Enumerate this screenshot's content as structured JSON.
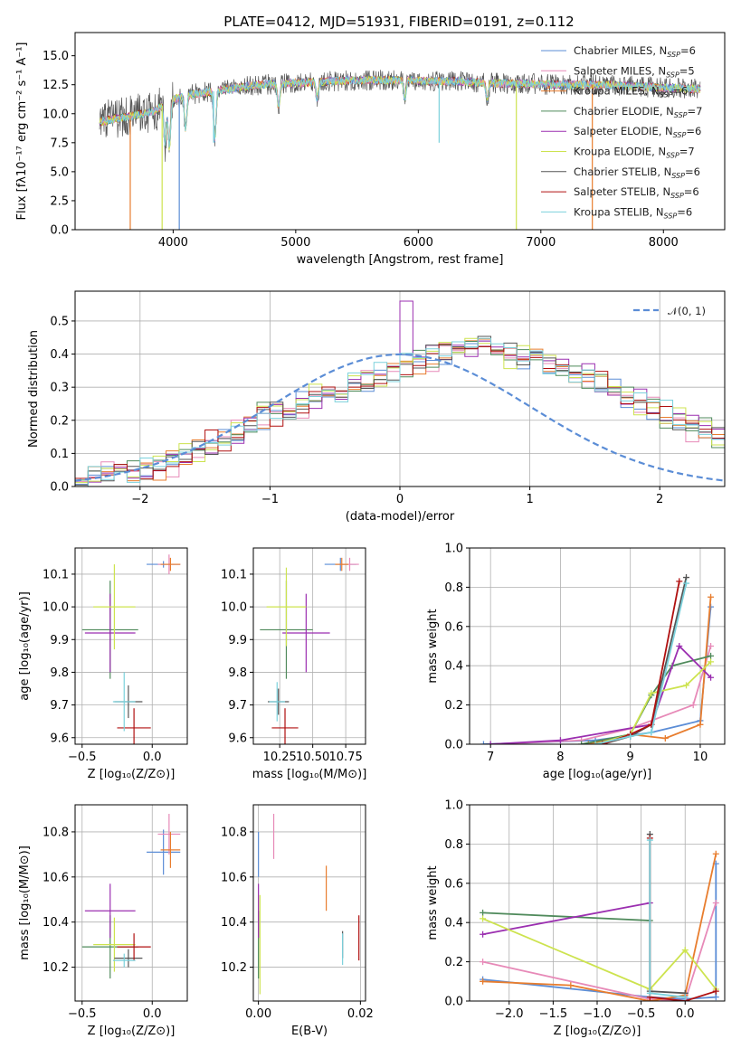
{
  "figure": {
    "title": "PLATE=0412, MJD=51931, FIBERID=0191, z=0.112"
  },
  "chart_data": [
    {
      "id": "spectrum",
      "type": "line",
      "xlabel": "wavelength [Angstrom, rest frame]",
      "ylabel": "Flux [fλ10⁻¹⁷ erg cm⁻² s⁻¹ A⁻¹]",
      "xlim": [
        3200,
        8500
      ],
      "ylim": [
        0,
        17
      ],
      "xticks": [
        4000,
        5000,
        6000,
        7000,
        8000
      ],
      "yticks": [
        0.0,
        2.5,
        5.0,
        7.5,
        10.0,
        12.5,
        15.0
      ],
      "x_tick_labels": [
        "4000",
        "5000",
        "6000",
        "7000",
        "8000"
      ],
      "y_tick_labels": [
        "0.0",
        "2.5",
        "5.0",
        "7.5",
        "10.0",
        "12.5",
        "15.0"
      ],
      "grid": false,
      "legend": "top-right",
      "continuum": {
        "x": [
          3400,
          3550,
          3700,
          3850,
          3950,
          4100,
          4300,
          4500,
          4700,
          4900,
          5100,
          5300,
          5500,
          5700,
          5900,
          6100,
          6300,
          6500,
          6700,
          6900,
          7100,
          7300,
          7500,
          7700,
          7900,
          8100,
          8300
        ],
        "y": [
          9.3,
          9.6,
          9.9,
          10.2,
          11.0,
          11.6,
          11.9,
          12.2,
          12.5,
          12.6,
          12.7,
          12.8,
          12.9,
          12.9,
          12.9,
          12.8,
          12.8,
          12.7,
          12.6,
          12.6,
          12.5,
          12.5,
          12.5,
          12.4,
          12.3,
          12.2,
          12.1
        ]
      },
      "absorption_lines": [
        {
          "x": 3934,
          "depth": 3.5
        },
        {
          "x": 3969,
          "depth": 4.0
        },
        {
          "x": 4102,
          "depth": 3.0
        },
        {
          "x": 4340,
          "depth": 4.2
        },
        {
          "x": 4861,
          "depth": 2.0
        },
        {
          "x": 5175,
          "depth": 1.5
        },
        {
          "x": 5890,
          "depth": 1.6
        },
        {
          "x": 6563,
          "depth": 1.4
        }
      ],
      "spikes_down": [
        {
          "x": 3650,
          "color": "#e87d2e",
          "to": 0.0
        },
        {
          "x": 3910,
          "color": "#cde34f",
          "to": 0.0
        },
        {
          "x": 4050,
          "color": "#5b8dd6",
          "to": 0.0
        },
        {
          "x": 6800,
          "color": "#cde34f",
          "to": 0.0
        },
        {
          "x": 7420,
          "color": "#e87d2e",
          "to": 0.0
        },
        {
          "x": 4330,
          "color": "#7bd1dc",
          "to": 7.5
        },
        {
          "x": 6170,
          "color": "#7bd1dc",
          "to": 7.5
        }
      ],
      "series": [
        {
          "name": "Chabrier MILES, N",
          "sub": "SSP",
          "suffix": "=6",
          "color": "#5b8dd6"
        },
        {
          "name": "Salpeter MILES, N",
          "sub": "SSP",
          "suffix": "=5",
          "color": "#e78ab8"
        },
        {
          "name": "Kroupa MILES, N",
          "sub": "SSP",
          "suffix": "=6",
          "color": "#e87d2e"
        },
        {
          "name": "Chabrier ELODIE, N",
          "sub": "SSP",
          "suffix": "=7",
          "color": "#4f8a5b"
        },
        {
          "name": "Salpeter ELODIE, N",
          "sub": "SSP",
          "suffix": "=6",
          "color": "#9b2fb0"
        },
        {
          "name": "Kroupa ELODIE, N",
          "sub": "SSP",
          "suffix": "=7",
          "color": "#cde34f"
        },
        {
          "name": "Chabrier STELIB, N",
          "sub": "SSP",
          "suffix": "=6",
          "color": "#555555"
        },
        {
          "name": "Salpeter STELIB, N",
          "sub": "SSP",
          "suffix": "=6",
          "color": "#b01010"
        },
        {
          "name": "Kroupa STELIB, N",
          "sub": "SSP",
          "suffix": "=6",
          "color": "#7bd1dc"
        }
      ]
    },
    {
      "id": "residuals",
      "type": "line",
      "xlabel": "(data-model)/error",
      "ylabel": "Normed distribution",
      "xlim": [
        -2.5,
        2.5
      ],
      "ylim": [
        0,
        0.59
      ],
      "xticks": [
        -2,
        -1,
        0,
        1,
        2
      ],
      "yticks": [
        0.0,
        0.1,
        0.2,
        0.3,
        0.4,
        0.5
      ],
      "x_tick_labels": [
        "−2",
        "−1",
        "0",
        "1",
        "2"
      ],
      "y_tick_labels": [
        "0.0",
        "0.1",
        "0.2",
        "0.3",
        "0.4",
        "0.5"
      ],
      "grid": true,
      "legend": "top-right",
      "legend_label": "𝒩(0, 1)",
      "hist_bin_width": 0.1,
      "hist_values": [
        0.02,
        0.03,
        0.04,
        0.05,
        0.05,
        0.05,
        0.06,
        0.07,
        0.09,
        0.11,
        0.13,
        0.14,
        0.16,
        0.19,
        0.21,
        0.22,
        0.24,
        0.25,
        0.27,
        0.28,
        0.29,
        0.31,
        0.32,
        0.34,
        0.35,
        0.37,
        0.38,
        0.39,
        0.4,
        0.41,
        0.42,
        0.42,
        0.41,
        0.4,
        0.39,
        0.38,
        0.37,
        0.35,
        0.34,
        0.33,
        0.31,
        0.29,
        0.27,
        0.25,
        0.24,
        0.22,
        0.2,
        0.18,
        0.17,
        0.15,
        0.14,
        0.12,
        0.11,
        0.1,
        0.09,
        0.08,
        0.07,
        0.06,
        0.05,
        0.05
      ],
      "hist_offsets": [
        0.0,
        0.02,
        -0.02,
        0.03,
        -0.03,
        0.01,
        -0.01,
        0.04,
        -0.04,
        0.02
      ],
      "series_colors": [
        "#5b8dd6",
        "#e78ab8",
        "#e87d2e",
        "#4f8a5b",
        "#9b2fb0",
        "#cde34f",
        "#555555",
        "#b01010",
        "#7bd1dc"
      ],
      "gauss_color": "#5b8dd6"
    },
    {
      "id": "age_vs_Z",
      "type": "scatter",
      "xlabel": "Z [log₁₀(Z/Z⊙)]",
      "ylabel": "age  [log₁₀(age/yr)]",
      "xlim": [
        -0.55,
        0.25
      ],
      "ylim": [
        9.58,
        10.18
      ],
      "xticks": [
        -0.5,
        0.0
      ],
      "yticks": [
        9.6,
        9.7,
        9.8,
        9.9,
        10.0,
        10.1
      ],
      "x_tick_labels": [
        "−0.5",
        "0.0"
      ],
      "y_tick_labels": [
        "9.6",
        "9.7",
        "9.8",
        "9.9",
        "10.0",
        "10.1"
      ],
      "grid": true,
      "points": [
        {
          "x": 0.08,
          "y": 10.13,
          "xe": 0.12,
          "ye": 0.01,
          "c": "#5b8dd6"
        },
        {
          "x": 0.12,
          "y": 10.13,
          "xe": 0.08,
          "ye": 0.03,
          "c": "#e78ab8"
        },
        {
          "x": 0.13,
          "y": 10.13,
          "xe": 0.07,
          "ye": 0.02,
          "c": "#e87d2e"
        },
        {
          "x": -0.3,
          "y": 9.93,
          "xe": 0.2,
          "ye": 0.15,
          "c": "#4f8a5b"
        },
        {
          "x": -0.3,
          "y": 9.92,
          "xe": 0.18,
          "ye": 0.12,
          "c": "#9b2fb0"
        },
        {
          "x": -0.27,
          "y": 10.0,
          "xe": 0.15,
          "ye": 0.13,
          "c": "#cde34f"
        },
        {
          "x": -0.17,
          "y": 9.71,
          "xe": 0.1,
          "ye": 0.05,
          "c": "#555555"
        },
        {
          "x": -0.13,
          "y": 9.63,
          "xe": 0.12,
          "ye": 0.06,
          "c": "#b01010"
        },
        {
          "x": -0.2,
          "y": 9.71,
          "xe": 0.08,
          "ye": 0.09,
          "c": "#7bd1dc"
        }
      ]
    },
    {
      "id": "age_vs_mass",
      "type": "scatter",
      "xlabel": "mass [log₁₀(M/M⊙)]",
      "ylabel": "",
      "xlim": [
        10.05,
        10.9
      ],
      "ylim": [
        9.58,
        10.18
      ],
      "xticks": [
        10.25,
        10.5,
        10.75
      ],
      "yticks": [
        9.6,
        9.7,
        9.8,
        9.9,
        10.0,
        10.1
      ],
      "x_tick_labels": [
        "10.25",
        "10.50",
        "10.75"
      ],
      "y_tick_labels": [
        "9.6",
        "9.7",
        "9.8",
        "9.9",
        "10.0",
        "10.1"
      ],
      "grid": true,
      "points": [
        {
          "x": 10.71,
          "y": 10.13,
          "xe": 0.12,
          "ye": 0.02,
          "c": "#5b8dd6"
        },
        {
          "x": 10.78,
          "y": 10.13,
          "xe": 0.07,
          "ye": 0.02,
          "c": "#e78ab8"
        },
        {
          "x": 10.72,
          "y": 10.13,
          "xe": 0.05,
          "ye": 0.02,
          "c": "#e87d2e"
        },
        {
          "x": 10.3,
          "y": 9.93,
          "xe": 0.2,
          "ye": 0.15,
          "c": "#4f8a5b"
        },
        {
          "x": 10.45,
          "y": 9.92,
          "xe": 0.18,
          "ye": 0.12,
          "c": "#9b2fb0"
        },
        {
          "x": 10.3,
          "y": 10.0,
          "xe": 0.15,
          "ye": 0.12,
          "c": "#cde34f"
        },
        {
          "x": 10.24,
          "y": 9.71,
          "xe": 0.08,
          "ye": 0.04,
          "c": "#555555"
        },
        {
          "x": 10.29,
          "y": 9.63,
          "xe": 0.1,
          "ye": 0.06,
          "c": "#b01010"
        },
        {
          "x": 10.23,
          "y": 9.71,
          "xe": 0.06,
          "ye": 0.06,
          "c": "#7bd1dc"
        }
      ]
    },
    {
      "id": "massweight_vs_age",
      "type": "line",
      "xlabel": "age  [log₁₀(age/yr)]",
      "ylabel": "mass weight",
      "xlim": [
        6.7,
        10.35
      ],
      "ylim": [
        0,
        1.0
      ],
      "xticks": [
        7,
        8,
        9,
        10
      ],
      "yticks": [
        0.0,
        0.2,
        0.4,
        0.6,
        0.8,
        1.0
      ],
      "x_tick_labels": [
        "7",
        "8",
        "9",
        "10"
      ],
      "y_tick_labels": [
        "0.0",
        "0.2",
        "0.4",
        "0.6",
        "0.8",
        "1.0"
      ],
      "grid": true,
      "series": [
        {
          "c": "#5b8dd6",
          "x": [
            6.9,
            8.5,
            9.3,
            10.0,
            10.15
          ],
          "y": [
            0.0,
            0.02,
            0.06,
            0.12,
            0.7
          ]
        },
        {
          "c": "#e78ab8",
          "x": [
            7.0,
            8.3,
            9.0,
            9.9,
            10.15
          ],
          "y": [
            0.0,
            0.02,
            0.08,
            0.2,
            0.5
          ]
        },
        {
          "c": "#e87d2e",
          "x": [
            8.4,
            9.0,
            9.5,
            10.0,
            10.15
          ],
          "y": [
            0.0,
            0.05,
            0.03,
            0.1,
            0.75
          ]
        },
        {
          "c": "#4f8a5b",
          "x": [
            8.3,
            9.0,
            9.3,
            9.6,
            10.15
          ],
          "y": [
            0.0,
            0.05,
            0.25,
            0.4,
            0.45
          ]
        },
        {
          "c": "#9b2fb0",
          "x": [
            7.0,
            8.0,
            9.3,
            9.7,
            10.15
          ],
          "y": [
            0.0,
            0.02,
            0.1,
            0.5,
            0.34
          ]
        },
        {
          "c": "#cde34f",
          "x": [
            8.5,
            9.0,
            9.3,
            9.8,
            10.15
          ],
          "y": [
            0.0,
            0.05,
            0.26,
            0.3,
            0.42
          ]
        },
        {
          "c": "#555555",
          "x": [
            8.6,
            9.0,
            9.3,
            9.8
          ],
          "y": [
            0.0,
            0.04,
            0.1,
            0.85
          ]
        },
        {
          "c": "#b01010",
          "x": [
            8.6,
            9.0,
            9.3,
            9.7
          ],
          "y": [
            0.0,
            0.05,
            0.1,
            0.83
          ]
        },
        {
          "c": "#7bd1dc",
          "x": [
            8.5,
            9.0,
            9.3,
            9.8
          ],
          "y": [
            0.0,
            0.04,
            0.06,
            0.82
          ]
        }
      ]
    },
    {
      "id": "mass_vs_Z",
      "type": "scatter",
      "xlabel": "Z [log₁₀(Z/Z⊙)]",
      "ylabel": "mass [log₁₀(M/M⊙)]",
      "xlim": [
        -0.55,
        0.25
      ],
      "ylim": [
        10.05,
        10.92
      ],
      "xticks": [
        -0.5,
        0.0
      ],
      "yticks": [
        10.2,
        10.4,
        10.6,
        10.8
      ],
      "x_tick_labels": [
        "−0.5",
        "0.0"
      ],
      "y_tick_labels": [
        "10.2",
        "10.4",
        "10.6",
        "10.8"
      ],
      "grid": true,
      "points": [
        {
          "x": 0.08,
          "y": 10.71,
          "xe": 0.12,
          "ye": 0.1,
          "c": "#5b8dd6"
        },
        {
          "x": 0.12,
          "y": 10.79,
          "xe": 0.08,
          "ye": 0.09,
          "c": "#e78ab8"
        },
        {
          "x": 0.13,
          "y": 10.72,
          "xe": 0.07,
          "ye": 0.08,
          "c": "#e87d2e"
        },
        {
          "x": -0.3,
          "y": 10.29,
          "xe": 0.2,
          "ye": 0.14,
          "c": "#4f8a5b"
        },
        {
          "x": -0.3,
          "y": 10.45,
          "xe": 0.18,
          "ye": 0.12,
          "c": "#9b2fb0"
        },
        {
          "x": -0.27,
          "y": 10.3,
          "xe": 0.15,
          "ye": 0.12,
          "c": "#cde34f"
        },
        {
          "x": -0.17,
          "y": 10.24,
          "xe": 0.1,
          "ye": 0.04,
          "c": "#555555"
        },
        {
          "x": -0.13,
          "y": 10.29,
          "xe": 0.12,
          "ye": 0.06,
          "c": "#b01010"
        },
        {
          "x": -0.2,
          "y": 10.23,
          "xe": 0.08,
          "ye": 0.03,
          "c": "#7bd1dc"
        }
      ]
    },
    {
      "id": "mass_vs_ebv",
      "type": "scatter",
      "xlabel": "E(B-V)",
      "ylabel": "",
      "xlim": [
        -0.001,
        0.021
      ],
      "ylim": [
        10.05,
        10.92
      ],
      "xticks": [
        0.0,
        0.02
      ],
      "yticks": [
        10.2,
        10.4,
        10.6,
        10.8
      ],
      "x_tick_labels": [
        "0.00",
        "0.02"
      ],
      "y_tick_labels": [
        "10.2",
        "10.4",
        "10.6",
        "10.8"
      ],
      "grid": true,
      "points": [
        {
          "x": 0.0,
          "y": 10.7,
          "ye": 0.1,
          "c": "#5b8dd6"
        },
        {
          "x": 0.003,
          "y": 10.78,
          "ye": 0.1,
          "c": "#e78ab8"
        },
        {
          "x": 0.0133,
          "y": 10.55,
          "ye": 0.1,
          "c": "#e87d2e"
        },
        {
          "x": 0.0,
          "y": 10.3,
          "ye": 0.15,
          "c": "#4f8a5b"
        },
        {
          "x": 0.0,
          "y": 10.45,
          "ye": 0.12,
          "c": "#9b2fb0"
        },
        {
          "x": 0.0003,
          "y": 10.3,
          "ye": 0.22,
          "c": "#cde34f"
        },
        {
          "x": 0.0165,
          "y": 10.3,
          "ye": 0.06,
          "c": "#555555"
        },
        {
          "x": 0.0197,
          "y": 10.33,
          "ye": 0.1,
          "c": "#b01010"
        },
        {
          "x": 0.0165,
          "y": 10.28,
          "ye": 0.07,
          "c": "#7bd1dc"
        }
      ]
    },
    {
      "id": "massweight_vs_Z",
      "type": "line",
      "xlabel": "Z [log₁₀(Z/Z⊙)]",
      "ylabel": "mass weight",
      "xlim": [
        -2.45,
        0.45
      ],
      "ylim": [
        0,
        1.0
      ],
      "xticks": [
        -2.0,
        -1.5,
        -1.0,
        -0.5,
        0.0
      ],
      "yticks": [
        0.0,
        0.2,
        0.4,
        0.6,
        0.8,
        1.0
      ],
      "x_tick_labels": [
        "−2.0",
        "−1.5",
        "−1.0",
        "−0.5",
        "0.0"
      ],
      "y_tick_labels": [
        "0.0",
        "0.2",
        "0.4",
        "0.6",
        "0.8",
        "1.0"
      ],
      "grid": true,
      "series": [
        {
          "c": "#5b8dd6",
          "x": [
            -2.3,
            -0.4,
            0.0,
            0.35,
            0.35
          ],
          "y": [
            0.11,
            0.02,
            0.01,
            0.02,
            0.7
          ]
        },
        {
          "c": "#e78ab8",
          "x": [
            -2.3,
            -0.4,
            0.0,
            0.35
          ],
          "y": [
            0.2,
            0.01,
            0.0,
            0.5
          ]
        },
        {
          "c": "#e87d2e",
          "x": [
            -2.3,
            -1.3,
            -0.4,
            0.0,
            0.35
          ],
          "y": [
            0.1,
            0.08,
            0.0,
            0.03,
            0.75
          ]
        },
        {
          "c": "#4f8a5b",
          "x": [
            -2.3,
            -0.4
          ],
          "y": [
            0.45,
            0.41
          ]
        },
        {
          "c": "#9b2fb0",
          "x": [
            -2.3,
            -0.4
          ],
          "y": [
            0.34,
            0.5
          ]
        },
        {
          "c": "#cde34f",
          "x": [
            -2.3,
            -0.4,
            0.0,
            0.35
          ],
          "y": [
            0.42,
            0.06,
            0.26,
            0.06
          ]
        },
        {
          "c": "#555555",
          "x": [
            -0.4,
            -0.4,
            0.0
          ],
          "y": [
            0.85,
            0.05,
            0.04
          ]
        },
        {
          "c": "#b01010",
          "x": [
            -0.4,
            -0.4,
            0.0,
            0.35
          ],
          "y": [
            0.83,
            0.02,
            0.0,
            0.05
          ]
        },
        {
          "c": "#7bd1dc",
          "x": [
            -0.4,
            -0.4,
            0.0
          ],
          "y": [
            0.82,
            0.04,
            0.02
          ]
        }
      ]
    }
  ]
}
